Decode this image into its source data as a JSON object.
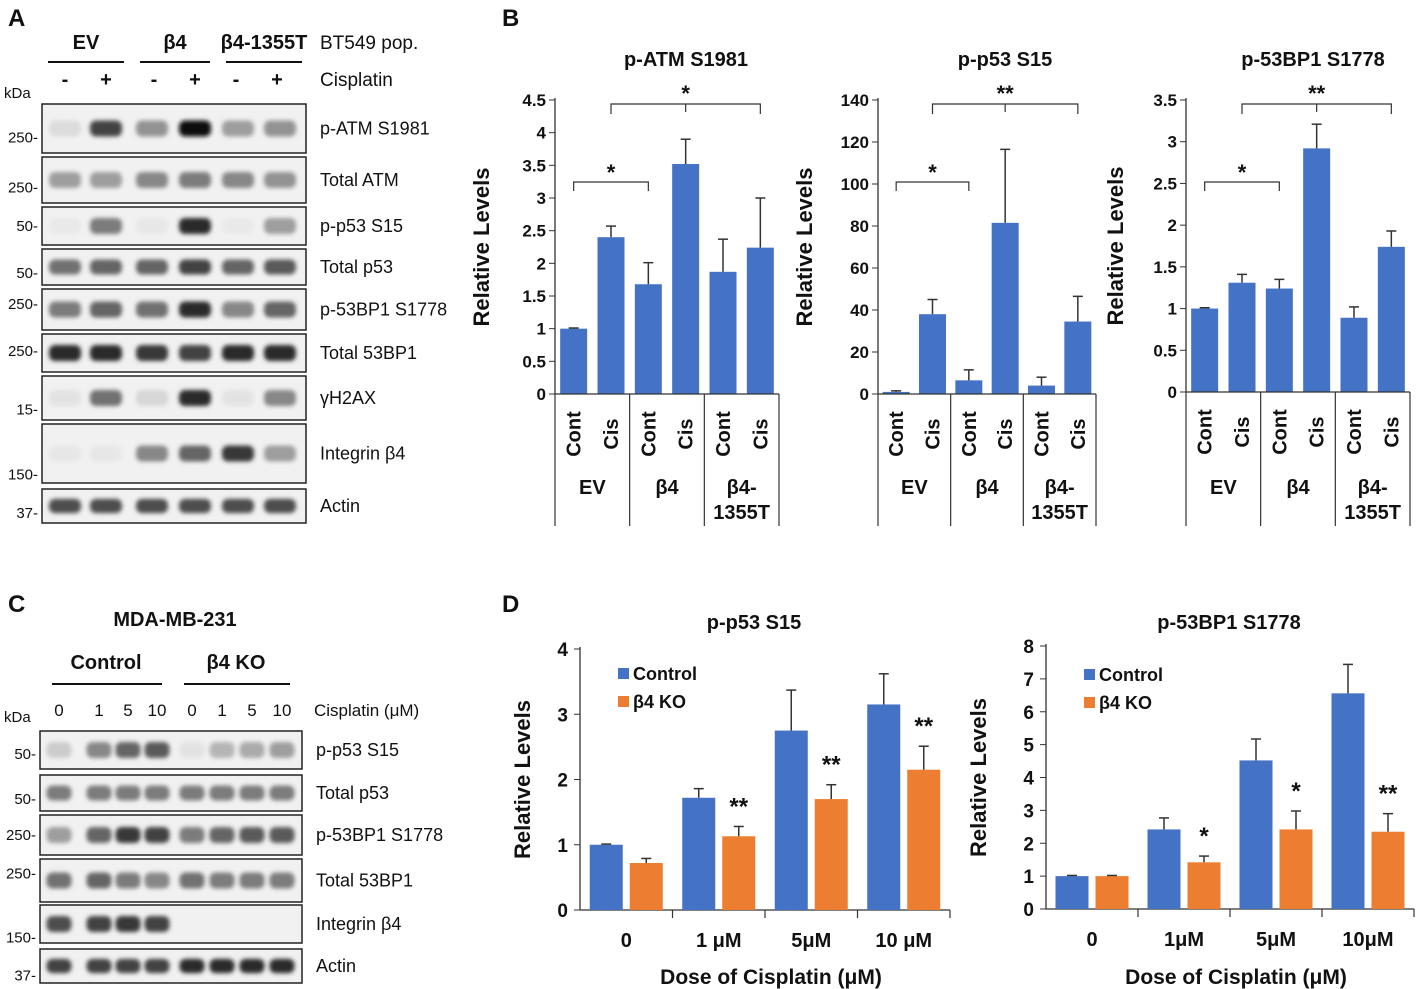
{
  "panel_letters": {
    "a": "A",
    "b": "B",
    "c": "C",
    "d": "D"
  },
  "colors": {
    "blue": "#4472C4",
    "orange": "#ED7D31",
    "axis": "#333333"
  },
  "blot_a": {
    "groups": [
      "EV",
      "β4",
      "β4-1355T"
    ],
    "pop_label": "BT549 pop.",
    "treat_signs": [
      "-",
      "+",
      "-",
      "+",
      "-",
      "+"
    ],
    "treat_label": "Cisplatin",
    "kda_label": "kDa",
    "rows": [
      {
        "label": "p-ATM S1981",
        "kda": "250-",
        "intensity": [
          0.08,
          0.75,
          0.4,
          1.0,
          0.35,
          0.4
        ]
      },
      {
        "label": "Total ATM",
        "kda": "250-",
        "intensity": [
          0.35,
          0.35,
          0.45,
          0.5,
          0.45,
          0.4
        ]
      },
      {
        "label": "p-p53 S15",
        "kda": "50-",
        "intensity": [
          0.02,
          0.5,
          0.03,
          0.85,
          0.02,
          0.35
        ]
      },
      {
        "label": "Total p53",
        "kda": "50-",
        "intensity": [
          0.55,
          0.6,
          0.6,
          0.75,
          0.6,
          0.65
        ]
      },
      {
        "label": "p-53BP1 S1778",
        "kda": "250-",
        "intensity": [
          0.5,
          0.6,
          0.55,
          0.85,
          0.45,
          0.6
        ]
      },
      {
        "label": "Total 53BP1",
        "kda": "250-",
        "intensity": [
          0.85,
          0.85,
          0.8,
          0.75,
          0.85,
          0.85
        ]
      },
      {
        "label": "γH2AX",
        "kda": "15-",
        "intensity": [
          0.05,
          0.55,
          0.1,
          0.85,
          0.05,
          0.45
        ]
      },
      {
        "label": "Integrin β4",
        "kda": "150-",
        "intensity": [
          0.03,
          0.03,
          0.45,
          0.6,
          0.8,
          0.35
        ]
      },
      {
        "label": "Actin",
        "kda": "37-",
        "intensity": [
          0.7,
          0.7,
          0.7,
          0.7,
          0.7,
          0.7
        ]
      }
    ]
  },
  "blot_c": {
    "title": "MDA-MB-231",
    "groups": [
      "Control",
      "β4 KO"
    ],
    "doses": [
      "0",
      "1",
      "5",
      "10",
      "0",
      "1",
      "5",
      "10"
    ],
    "dose_label": "Cisplatin (μM)",
    "kda_label": "kDa",
    "rows": [
      {
        "label": "p-p53 S15",
        "kda": "50-",
        "intensity": [
          0.15,
          0.45,
          0.6,
          0.65,
          0.05,
          0.25,
          0.3,
          0.35
        ]
      },
      {
        "label": "Total p53",
        "kda": "50-",
        "intensity": [
          0.5,
          0.5,
          0.5,
          0.5,
          0.5,
          0.5,
          0.5,
          0.5
        ]
      },
      {
        "label": "p-53BP1 S1778",
        "kda": "250-",
        "intensity": [
          0.35,
          0.6,
          0.8,
          0.75,
          0.5,
          0.6,
          0.65,
          0.65
        ]
      },
      {
        "label": "Total 53BP1",
        "kda": "250-",
        "intensity": [
          0.55,
          0.6,
          0.5,
          0.45,
          0.55,
          0.5,
          0.5,
          0.5
        ]
      },
      {
        "label": "Integrin β4",
        "kda": "150-",
        "intensity": [
          0.7,
          0.75,
          0.8,
          0.75,
          0.0,
          0.0,
          0.0,
          0.0
        ]
      },
      {
        "label": "Actin",
        "kda": "37-",
        "intensity": [
          0.75,
          0.75,
          0.75,
          0.75,
          0.85,
          0.85,
          0.85,
          0.85
        ]
      }
    ]
  },
  "chart_data": [
    {
      "type": "bar",
      "title": "p-ATM S1981",
      "ylabel": "Relative Levels",
      "ylim": [
        0,
        4.5
      ],
      "ticks": [
        "0",
        "0.5",
        "1",
        "1.5",
        "2",
        "2.5",
        "3",
        "3.5",
        "4",
        "4.5"
      ],
      "categories": [
        "Cont",
        "Cis",
        "Cont",
        "Cis",
        "Cont",
        "Cis"
      ],
      "groups": [
        "EV",
        "β4",
        "β4-\n1355T"
      ],
      "values": [
        1.0,
        2.4,
        1.68,
        3.52,
        1.87,
        2.24
      ],
      "errors": [
        0.01,
        0.17,
        0.33,
        0.38,
        0.5,
        0.76
      ],
      "sig": [
        {
          "from": 0,
          "to": 2,
          "label": "*"
        },
        {
          "from": 1,
          "to": 5,
          "label": "*",
          "mid": 3
        }
      ]
    },
    {
      "type": "bar",
      "title": "p-p53 S15",
      "ylabel": "Relative Levels",
      "ylim": [
        0,
        140
      ],
      "ticks": [
        "0",
        "20",
        "40",
        "60",
        "80",
        "100",
        "120",
        "140"
      ],
      "categories": [
        "Cont",
        "Cis",
        "Cont",
        "Cis",
        "Cont",
        "Cis"
      ],
      "groups": [
        "EV",
        "β4",
        "β4-\n1355T"
      ],
      "values": [
        1,
        38,
        6.5,
        81.5,
        4,
        34.5
      ],
      "errors": [
        0.5,
        7,
        5,
        35,
        4,
        12
      ],
      "sig": [
        {
          "from": 0,
          "to": 2,
          "label": "*"
        },
        {
          "from": 1,
          "to": 5,
          "label": "**",
          "mid": 3
        }
      ]
    },
    {
      "type": "bar",
      "title": "p-53BP1 S1778",
      "ylabel": "Relative Levels",
      "ylim": [
        0,
        3.5
      ],
      "ticks": [
        "0",
        "0.5",
        "1",
        "1.5",
        "2",
        "2.5",
        "3",
        "3.5"
      ],
      "categories": [
        "Cont",
        "Cis",
        "Cont",
        "Cis",
        "Cont",
        "Cis"
      ],
      "groups": [
        "EV",
        "β4",
        "β4-\n1355T"
      ],
      "values": [
        1.0,
        1.31,
        1.24,
        2.92,
        0.89,
        1.74
      ],
      "errors": [
        0.01,
        0.1,
        0.11,
        0.29,
        0.13,
        0.19
      ],
      "sig": [
        {
          "from": 0,
          "to": 2,
          "label": "*"
        },
        {
          "from": 1,
          "to": 5,
          "label": "**",
          "mid": 3
        }
      ]
    },
    {
      "type": "bar",
      "title": "p-p53 S15",
      "ylabel": "Relative Levels",
      "xlabel": "Dose of Cisplatin (μM)",
      "ylim": [
        0,
        4
      ],
      "ticks": [
        "0",
        "1",
        "2",
        "3",
        "4"
      ],
      "categories": [
        "0",
        "1 μM",
        "5μM",
        "10 μM"
      ],
      "series": [
        {
          "name": "Control",
          "values": [
            1.0,
            1.72,
            2.75,
            3.15
          ],
          "errors": [
            0.01,
            0.14,
            0.62,
            0.47
          ]
        },
        {
          "name": "β4 KO",
          "values": [
            0.72,
            1.13,
            1.7,
            2.15
          ],
          "errors": [
            0.07,
            0.15,
            0.22,
            0.36
          ]
        }
      ],
      "stars": [
        "",
        "**",
        "**",
        "**"
      ]
    },
    {
      "type": "bar",
      "title": "p-53BP1 S1778",
      "ylabel": "Relative Levels",
      "xlabel": "Dose of Cisplatin (μM)",
      "ylim": [
        0,
        8
      ],
      "ticks": [
        "0",
        "1",
        "2",
        "3",
        "4",
        "5",
        "6",
        "7",
        "8"
      ],
      "categories": [
        "0",
        "1μM",
        "5μM",
        "10μM"
      ],
      "series": [
        {
          "name": "Control",
          "values": [
            1.0,
            2.42,
            4.52,
            6.56
          ],
          "errors": [
            0.02,
            0.35,
            0.65,
            0.88
          ]
        },
        {
          "name": "β4 KO",
          "values": [
            1.0,
            1.42,
            2.42,
            2.35
          ],
          "errors": [
            0.02,
            0.19,
            0.56,
            0.55
          ]
        }
      ],
      "stars": [
        "",
        "*",
        "*",
        "**"
      ]
    }
  ]
}
